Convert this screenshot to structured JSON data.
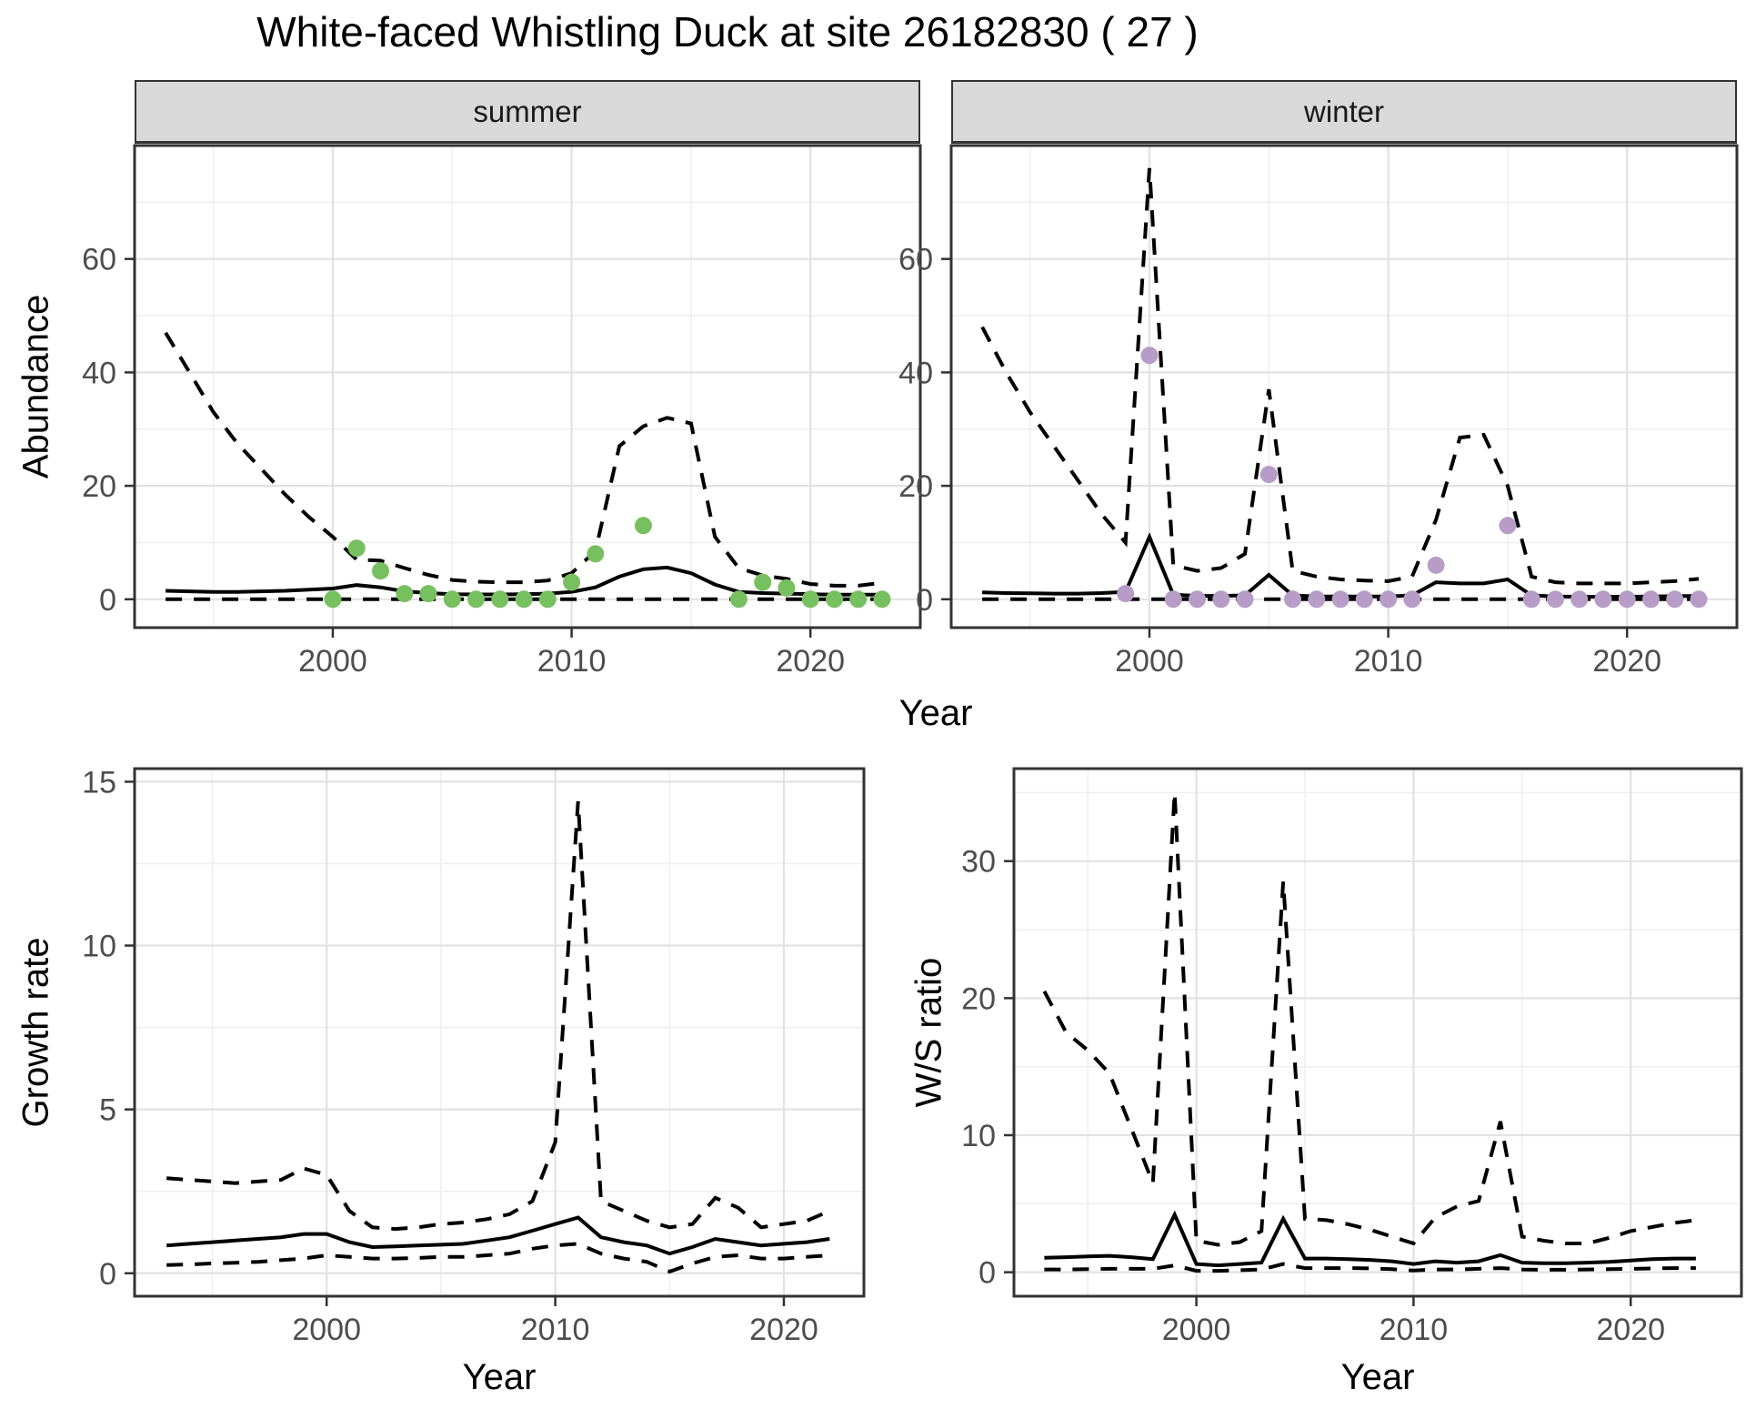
{
  "title": "White-faced Whistling Duck at site 26182830 ( 27 )",
  "axis_labels": {
    "abundance": "Abundance",
    "year_top": "Year",
    "growth": "Growth rate",
    "ws": "W/S ratio",
    "year_bottom_left": "Year",
    "year_bottom_right": "Year"
  },
  "facets": [
    {
      "label": "summer"
    },
    {
      "label": "winter"
    }
  ],
  "colors": {
    "summer_points": "#77c05f",
    "winter_points": "#b79cc8",
    "line": "#000000",
    "strip_bg": "#d9d9d9",
    "panel_border": "#333333",
    "grid_major": "#e2e2e2",
    "grid_minor": "#efefef",
    "axis_text": "#4d4d4d",
    "tick_mark": "#333333"
  },
  "chart_data": [
    {
      "id": "abundance-summer",
      "type": "line",
      "facet": "summer",
      "ylabel": "Abundance",
      "xlabel": "Year",
      "xlim": [
        1991.7,
        2024.6
      ],
      "ylim": [
        -5,
        80
      ],
      "xticks": [
        2000,
        2010,
        2020
      ],
      "xminor": [
        1995,
        2005,
        2015
      ],
      "yticks": [
        0,
        20,
        40,
        60
      ],
      "yminor": [
        10,
        30,
        50,
        70
      ],
      "x": [
        1993,
        1994,
        1995,
        1996,
        1997,
        1998,
        1999,
        2000,
        2001,
        2002,
        2003,
        2004,
        2005,
        2006,
        2007,
        2008,
        2009,
        2010,
        2011,
        2012,
        2013,
        2014,
        2015,
        2016,
        2017,
        2018,
        2019,
        2020,
        2021,
        2022,
        2023
      ],
      "series": [
        {
          "name": "upper_ci",
          "style": "dashed",
          "values": [
            47,
            40,
            33,
            27.5,
            23,
            18.5,
            14.5,
            11,
            7,
            6.8,
            5.5,
            4.3,
            3.4,
            3.1,
            3.0,
            3.0,
            3.3,
            4.6,
            8.5,
            27,
            30.5,
            32,
            31,
            11,
            5.5,
            4.2,
            3.6,
            2.7,
            2.4,
            2.4,
            2.9
          ]
        },
        {
          "name": "median",
          "style": "solid",
          "values": [
            1.5,
            1.4,
            1.3,
            1.3,
            1.4,
            1.5,
            1.7,
            1.9,
            2.5,
            2.1,
            1.4,
            1.1,
            0.9,
            0.85,
            0.85,
            0.9,
            1.0,
            1.3,
            2.1,
            4.0,
            5.3,
            5.6,
            4.6,
            2.6,
            1.3,
            1.1,
            1.0,
            0.9,
            0.8,
            0.8,
            0.8
          ]
        },
        {
          "name": "lower_ci",
          "style": "dashed",
          "values": [
            0,
            0,
            0,
            0,
            0,
            0,
            0,
            0,
            0,
            0,
            0,
            0,
            0,
            0,
            0,
            0,
            0,
            0,
            0,
            0,
            0,
            0,
            0,
            0,
            0,
            0,
            0,
            0,
            0,
            0,
            0
          ]
        }
      ],
      "points": {
        "color_key": "summer_points",
        "x": [
          2000,
          2001,
          2002,
          2003,
          2004,
          2005,
          2006,
          2007,
          2008,
          2009,
          2010,
          2011,
          2013,
          2017,
          2018,
          2019,
          2020,
          2021,
          2022,
          2023
        ],
        "y": [
          0,
          9,
          5,
          1,
          1,
          0,
          0,
          0,
          0,
          0,
          3,
          8,
          13,
          0,
          3,
          2,
          0,
          0,
          0,
          0
        ]
      }
    },
    {
      "id": "abundance-winter",
      "type": "line",
      "facet": "winter",
      "ylabel": "Abundance",
      "xlabel": "Year",
      "xlim": [
        1991.7,
        2024.6
      ],
      "ylim": [
        -5,
        80
      ],
      "xticks": [
        2000,
        2010,
        2020
      ],
      "xminor": [
        1995,
        2005,
        2015
      ],
      "yticks": [
        0,
        20,
        40,
        60
      ],
      "yminor": [
        10,
        30,
        50,
        70
      ],
      "x": [
        1993,
        1994,
        1995,
        1996,
        1997,
        1998,
        1999,
        2000,
        2001,
        2002,
        2003,
        2004,
        2005,
        2006,
        2007,
        2008,
        2009,
        2010,
        2011,
        2012,
        2013,
        2014,
        2015,
        2016,
        2017,
        2018,
        2019,
        2020,
        2021,
        2022,
        2023
      ],
      "series": [
        {
          "name": "upper_ci",
          "style": "dashed",
          "values": [
            48,
            40,
            33,
            27,
            21,
            15,
            10,
            76,
            6,
            5,
            5.5,
            8,
            37,
            5,
            4,
            3.5,
            3.3,
            3.2,
            4,
            14,
            28.5,
            29,
            20,
            4,
            3,
            2.8,
            2.8,
            2.8,
            3,
            3.2,
            3.6
          ]
        },
        {
          "name": "median",
          "style": "solid",
          "values": [
            1.2,
            1.1,
            1.05,
            1.0,
            1.0,
            1.1,
            1.3,
            11,
            0.8,
            0.6,
            0.6,
            0.7,
            4.3,
            0.7,
            0.5,
            0.5,
            0.5,
            0.5,
            0.7,
            3.0,
            2.8,
            2.8,
            3.5,
            0.7,
            0.5,
            0.45,
            0.45,
            0.45,
            0.5,
            0.55,
            0.6
          ]
        },
        {
          "name": "lower_ci",
          "style": "dashed",
          "values": [
            0,
            0,
            0,
            0,
            0,
            0,
            0,
            0,
            0,
            0,
            0,
            0,
            0,
            0,
            0,
            0,
            0,
            0,
            0,
            0,
            0,
            0,
            0,
            0,
            0,
            0,
            0,
            0,
            0,
            0,
            0
          ]
        }
      ],
      "points": {
        "color_key": "winter_points",
        "x": [
          1999,
          2000,
          2001,
          2002,
          2003,
          2004,
          2005,
          2006,
          2007,
          2008,
          2009,
          2010,
          2011,
          2012,
          2015,
          2016,
          2017,
          2018,
          2019,
          2020,
          2021,
          2022,
          2023
        ],
        "y": [
          1,
          43,
          0,
          0,
          0,
          0,
          22,
          0,
          0,
          0,
          0,
          0,
          0,
          6,
          13,
          0,
          0,
          0,
          0,
          0,
          0,
          0,
          0
        ]
      }
    },
    {
      "id": "growth-rate",
      "type": "line",
      "ylabel": "Growth rate",
      "xlabel": "Year",
      "xlim": [
        1991.6,
        2023.5
      ],
      "ylim": [
        -0.7,
        15.4
      ],
      "xticks": [
        2000,
        2010,
        2020
      ],
      "xminor": [
        1995,
        2005,
        2015
      ],
      "yticks": [
        0,
        5,
        10,
        15
      ],
      "yminor": [
        2.5,
        7.5,
        12.5
      ],
      "x": [
        1993,
        1994,
        1995,
        1996,
        1997,
        1998,
        1999,
        2000,
        2001,
        2002,
        2003,
        2004,
        2005,
        2006,
        2007,
        2008,
        2009,
        2010,
        2011,
        2012,
        2013,
        2014,
        2015,
        2016,
        2017,
        2018,
        2019,
        2020,
        2021,
        2022
      ],
      "series": [
        {
          "name": "upper_ci",
          "style": "dashed",
          "values": [
            2.9,
            2.85,
            2.8,
            2.75,
            2.8,
            2.85,
            3.2,
            3.0,
            1.9,
            1.4,
            1.35,
            1.4,
            1.5,
            1.55,
            1.65,
            1.8,
            2.2,
            4.0,
            14.4,
            2.2,
            1.9,
            1.6,
            1.4,
            1.5,
            2.3,
            2.0,
            1.4,
            1.5,
            1.6,
            1.9
          ]
        },
        {
          "name": "median",
          "style": "solid",
          "values": [
            0.85,
            0.9,
            0.95,
            1.0,
            1.05,
            1.1,
            1.2,
            1.2,
            0.95,
            0.8,
            0.82,
            0.85,
            0.87,
            0.9,
            1.0,
            1.1,
            1.3,
            1.5,
            1.7,
            1.1,
            0.95,
            0.85,
            0.6,
            0.8,
            1.05,
            0.95,
            0.85,
            0.9,
            0.95,
            1.05
          ]
        },
        {
          "name": "lower_ci",
          "style": "dashed",
          "values": [
            0.25,
            0.27,
            0.3,
            0.32,
            0.35,
            0.4,
            0.45,
            0.55,
            0.5,
            0.45,
            0.45,
            0.47,
            0.5,
            0.5,
            0.55,
            0.6,
            0.75,
            0.85,
            0.9,
            0.6,
            0.45,
            0.35,
            0.05,
            0.3,
            0.5,
            0.55,
            0.45,
            0.45,
            0.5,
            0.55
          ]
        }
      ]
    },
    {
      "id": "ws-ratio",
      "type": "line",
      "ylabel": "W/S ratio",
      "xlabel": "Year",
      "xlim": [
        1991.6,
        2025.1
      ],
      "ylim": [
        -1.75,
        36.75
      ],
      "xticks": [
        2000,
        2010,
        2020
      ],
      "xminor": [
        1995,
        2005,
        2015
      ],
      "yticks": [
        0,
        10,
        20,
        30
      ],
      "yminor": [
        5,
        15,
        25,
        35
      ],
      "x": [
        1993,
        1994,
        1995,
        1996,
        1997,
        1998,
        1999,
        2000,
        2001,
        2002,
        2003,
        2004,
        2005,
        2006,
        2007,
        2008,
        2009,
        2010,
        2011,
        2012,
        2013,
        2014,
        2015,
        2016,
        2017,
        2018,
        2019,
        2020,
        2021,
        2022,
        2023
      ],
      "series": [
        {
          "name": "upper_ci",
          "style": "dashed",
          "values": [
            20.5,
            17.5,
            16.2,
            14.5,
            10.5,
            6.5,
            35,
            2.3,
            2.0,
            2.2,
            3.0,
            28.5,
            3.9,
            3.8,
            3.5,
            3.1,
            2.6,
            2.1,
            4.0,
            4.8,
            5.2,
            11,
            2.6,
            2.3,
            2.1,
            2.1,
            2.5,
            3.0,
            3.3,
            3.6,
            3.8
          ]
        },
        {
          "name": "median",
          "style": "solid",
          "values": [
            1.05,
            1.1,
            1.15,
            1.2,
            1.1,
            0.95,
            4.2,
            0.6,
            0.5,
            0.6,
            0.7,
            3.9,
            1.0,
            1.0,
            0.95,
            0.9,
            0.8,
            0.6,
            0.8,
            0.7,
            0.8,
            1.25,
            0.7,
            0.65,
            0.65,
            0.7,
            0.75,
            0.85,
            0.95,
            1.0,
            1.0
          ]
        },
        {
          "name": "lower_ci",
          "style": "dashed",
          "values": [
            0.2,
            0.2,
            0.22,
            0.25,
            0.25,
            0.25,
            0.5,
            0.1,
            0.1,
            0.15,
            0.2,
            0.6,
            0.3,
            0.3,
            0.3,
            0.28,
            0.22,
            0.12,
            0.2,
            0.2,
            0.25,
            0.3,
            0.2,
            0.18,
            0.18,
            0.2,
            0.22,
            0.25,
            0.28,
            0.3,
            0.3
          ]
        }
      ]
    }
  ]
}
